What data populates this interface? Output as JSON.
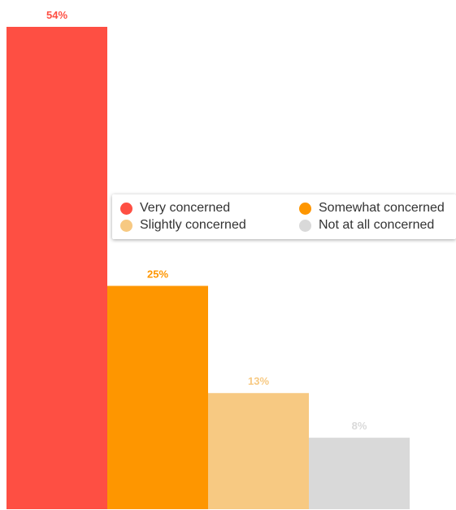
{
  "chart_data": {
    "type": "bar",
    "categories": [
      "Very concerned",
      "Somewhat concerned",
      "Slightly concerned",
      "Not at all concerned"
    ],
    "values": [
      54,
      25,
      13,
      8
    ],
    "data_labels": [
      "54%",
      "25%",
      "13%",
      "8%"
    ],
    "colors": [
      "#fe4f43",
      "#fe9600",
      "#f7c982",
      "#d9d9d9"
    ],
    "title": "",
    "xlabel": "",
    "ylabel": "",
    "ylim": [
      0,
      54
    ],
    "grid": false,
    "legend": {
      "placement": "center-right",
      "entries": [
        {
          "label": "Very concerned",
          "color": "#fe4f43"
        },
        {
          "label": "Somewhat concerned",
          "color": "#fe9600"
        },
        {
          "label": "Slightly concerned",
          "color": "#f7c982"
        },
        {
          "label": "Not at all concerned",
          "color": "#d9d9d9"
        }
      ]
    }
  }
}
